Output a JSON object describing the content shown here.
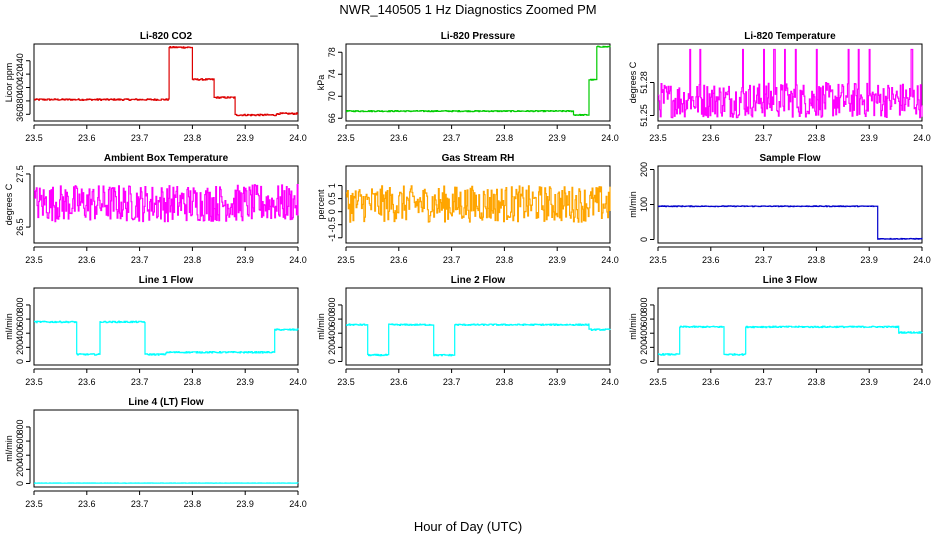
{
  "figure": {
    "title": "NWR_140505  1 Hz Diagnostics Zoomed PM",
    "xlabel": "Hour of Day (UTC)"
  },
  "chart_data": [
    {
      "id": "co2",
      "type": "line",
      "title": "Li-820 CO2",
      "ylabel": "Licor ppm",
      "color": "#dd0000",
      "xlim": [
        23.5,
        24.0
      ],
      "ylim": [
        350,
        465
      ],
      "x_ticks": [
        "23.5",
        "23.6",
        "23.7",
        "23.8",
        "23.9",
        "24.0"
      ],
      "y_ticks": [
        360,
        380,
        400,
        420,
        440
      ],
      "segments": [
        [
          23.5,
          23.755,
          382
        ],
        [
          23.755,
          23.8,
          460
        ],
        [
          23.8,
          23.84,
          412
        ],
        [
          23.84,
          23.88,
          385
        ],
        [
          23.88,
          23.96,
          359
        ],
        [
          23.96,
          24.0,
          361
        ]
      ],
      "noise": 1.2
    },
    {
      "id": "pressure",
      "type": "line",
      "title": "Li-820 Pressure",
      "ylabel": "kPa",
      "color": "#00cc00",
      "xlim": [
        23.5,
        24.0
      ],
      "ylim": [
        65.5,
        79.5
      ],
      "x_ticks": [
        "23.5",
        "23.6",
        "23.7",
        "23.8",
        "23.9",
        "24.0"
      ],
      "y_ticks": [
        66,
        70,
        74,
        78
      ],
      "segments": [
        [
          23.5,
          23.93,
          67.3
        ],
        [
          23.93,
          23.96,
          66.6
        ],
        [
          23.96,
          23.975,
          73
        ],
        [
          23.975,
          24.0,
          79
        ]
      ],
      "noise": 0.1
    },
    {
      "id": "licor_temp",
      "type": "line",
      "title": "Li-820 Temperature",
      "ylabel": "degrees C",
      "color": "#ff00ff",
      "xlim": [
        23.5,
        24.0
      ],
      "ylim": [
        51.245,
        51.315
      ],
      "x_ticks": [
        "23.5",
        "23.6",
        "23.7",
        "23.8",
        "23.9",
        "24.0"
      ],
      "y_ticks": [
        51.25,
        51.28
      ],
      "segments": [
        [
          23.5,
          24.0,
          51.264
        ]
      ],
      "noise": 0.016,
      "spikes": [
        23.56,
        23.58,
        23.66,
        23.7,
        23.72,
        23.74,
        23.76,
        23.8,
        23.86,
        23.88,
        23.9,
        23.98
      ],
      "spike_level": 51.31
    },
    {
      "id": "box_temp",
      "type": "line",
      "title": "Ambient Box Temperature",
      "ylabel": "degrees C",
      "color": "#ff00ff",
      "xlim": [
        23.5,
        24.0
      ],
      "ylim": [
        26.2,
        27.65
      ],
      "x_ticks": [
        "23.5",
        "23.6",
        "23.7",
        "23.8",
        "23.9",
        "24.0"
      ],
      "y_ticks": [
        26.5,
        27.5
      ],
      "segments": [
        [
          23.5,
          24.0,
          26.95
        ]
      ],
      "noise": 0.35
    },
    {
      "id": "rh",
      "type": "line",
      "title": "Gas Stream RH",
      "ylabel": "percent",
      "color": "#ffa500",
      "xlim": [
        23.5,
        24.0
      ],
      "ylim": [
        -1.2,
        1.75
      ],
      "x_ticks": [
        "23.5",
        "23.6",
        "23.7",
        "23.8",
        "23.9",
        "24.0"
      ],
      "y_ticks": [
        -1.0,
        -0.5,
        0.0,
        0.5,
        1.0
      ],
      "segments": [
        [
          23.5,
          24.0,
          0.3
        ]
      ],
      "noise": 0.7
    },
    {
      "id": "sample_flow",
      "type": "line",
      "title": "Sample Flow",
      "ylabel": "ml/min",
      "color": "#0000cc",
      "xlim": [
        23.5,
        24.0
      ],
      "ylim": [
        -10,
        210
      ],
      "x_ticks": [
        "23.5",
        "23.6",
        "23.7",
        "23.8",
        "23.9",
        "24.0"
      ],
      "y_ticks": [
        0,
        100,
        200
      ],
      "segments": [
        [
          23.5,
          23.915,
          95
        ],
        [
          23.915,
          24.0,
          2
        ]
      ],
      "noise": 1
    },
    {
      "id": "line1",
      "type": "line",
      "title": "Line 1 Flow",
      "ylabel": "ml/min",
      "color": "#00ffff",
      "xlim": [
        23.5,
        24.0
      ],
      "ylim": [
        -50,
        1040
      ],
      "x_ticks": [
        "23.5",
        "23.6",
        "23.7",
        "23.8",
        "23.9",
        "24.0"
      ],
      "y_ticks": [
        0,
        200,
        400,
        600,
        800
      ],
      "segments": [
        [
          23.5,
          23.58,
          560
        ],
        [
          23.58,
          23.625,
          100
        ],
        [
          23.625,
          23.71,
          560
        ],
        [
          23.71,
          23.75,
          100
        ],
        [
          23.75,
          23.955,
          130
        ],
        [
          23.955,
          24.0,
          450
        ]
      ],
      "noise": 10
    },
    {
      "id": "line2",
      "type": "line",
      "title": "Line 2 Flow",
      "ylabel": "ml/min",
      "color": "#00ffff",
      "xlim": [
        23.5,
        24.0
      ],
      "ylim": [
        -50,
        1040
      ],
      "x_ticks": [
        "23.5",
        "23.6",
        "23.7",
        "23.8",
        "23.9",
        "24.0"
      ],
      "y_ticks": [
        0,
        200,
        400,
        600,
        800
      ],
      "segments": [
        [
          23.5,
          23.54,
          520
        ],
        [
          23.54,
          23.58,
          90
        ],
        [
          23.58,
          23.665,
          520
        ],
        [
          23.665,
          23.705,
          90
        ],
        [
          23.705,
          23.96,
          520
        ],
        [
          23.96,
          24.0,
          450
        ]
      ],
      "noise": 10
    },
    {
      "id": "line3",
      "type": "line",
      "title": "Line 3 Flow",
      "ylabel": "ml/min",
      "color": "#00ffff",
      "xlim": [
        23.5,
        24.0
      ],
      "ylim": [
        -50,
        1040
      ],
      "x_ticks": [
        "23.5",
        "23.6",
        "23.7",
        "23.8",
        "23.9",
        "24.0"
      ],
      "y_ticks": [
        0,
        200,
        400,
        600,
        800
      ],
      "segments": [
        [
          23.5,
          23.54,
          100
        ],
        [
          23.54,
          23.625,
          490
        ],
        [
          23.625,
          23.665,
          100
        ],
        [
          23.665,
          23.955,
          490
        ],
        [
          23.955,
          24.0,
          410
        ]
      ],
      "noise": 10
    },
    {
      "id": "line4",
      "type": "line",
      "title": "Line 4 (LT) Flow",
      "ylabel": "ml/min",
      "color": "#00ffff",
      "xlim": [
        23.5,
        24.0
      ],
      "ylim": [
        -50,
        1040
      ],
      "x_ticks": [
        "23.5",
        "23.6",
        "23.7",
        "23.8",
        "23.9",
        "24.0"
      ],
      "y_ticks": [
        0,
        200,
        400,
        600,
        800
      ],
      "segments": [
        [
          23.5,
          24.0,
          5
        ]
      ],
      "noise": 2
    }
  ]
}
